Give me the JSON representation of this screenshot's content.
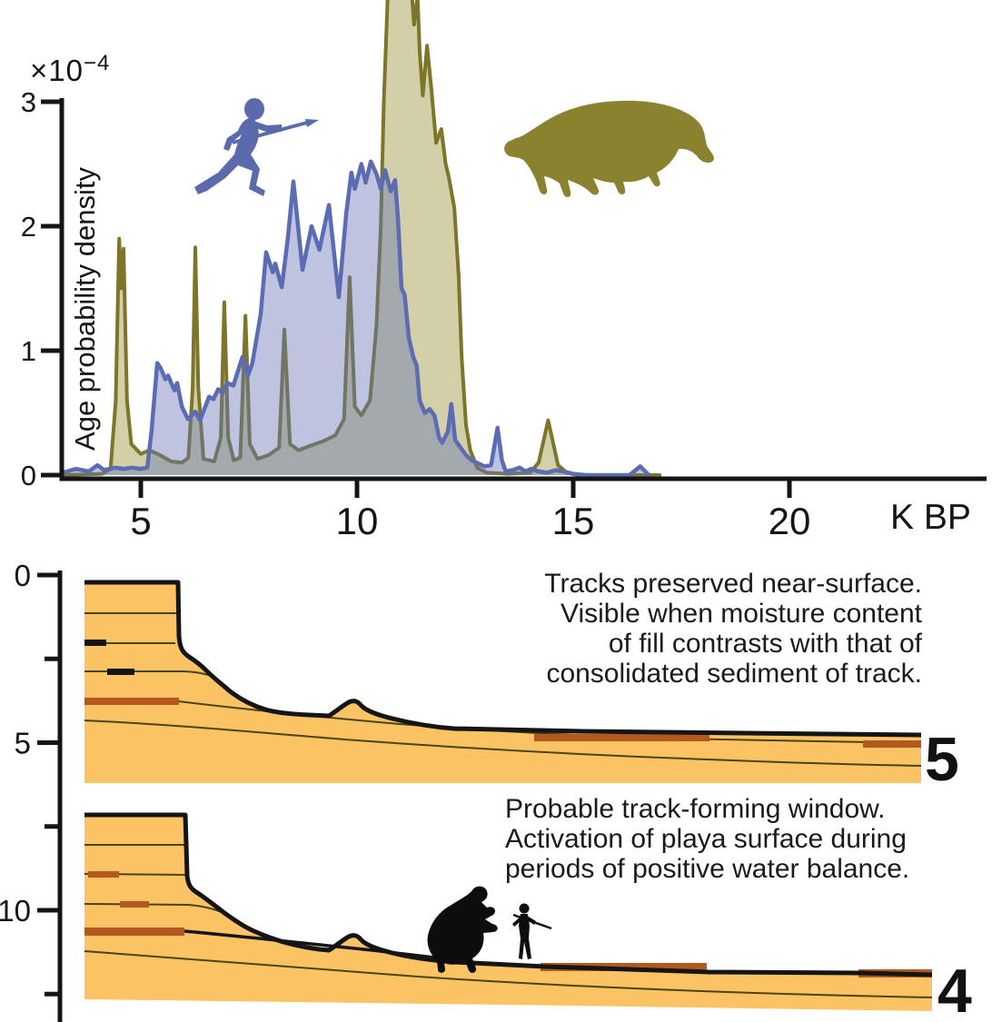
{
  "figure": {
    "colors": {
      "human_blue_stroke": "#5b6cb2",
      "human_blue_fill": "rgba(100,115,180,0.42)",
      "sloth_olive_stroke": "#7d752a",
      "sloth_olive_fill": "rgba(150,142,50,0.42)",
      "sediment_orange": "#fbc364",
      "track_brown": "#b2591f",
      "outline_black": "#151515",
      "strata_line": "#4a4414"
    },
    "sections": {
      "depth_axis": {
        "ticks": [
          {
            "value": 0,
            "label": "0"
          },
          {
            "value": 2.5,
            "label": ""
          },
          {
            "value": 5,
            "label": "5"
          },
          {
            "value": 7.5,
            "label": ""
          },
          {
            "value": 10,
            "label": "10"
          },
          {
            "value": 12.5,
            "label": ""
          }
        ]
      },
      "section5": {
        "number": "5",
        "caption_lines": [
          "Tracks preserved near-surface.",
          "Visible when moisture content",
          "of fill contrasts with that of",
          "consolidated sediment of track."
        ]
      },
      "section4": {
        "number": "4",
        "caption_lines": [
          "Probable track-forming window.",
          "Activation of playa surface during",
          "periods of positive water balance."
        ]
      }
    }
  },
  "chart_data": {
    "type": "area",
    "title": "",
    "xlabel": "K BP",
    "ylabel": "Age probability density",
    "ylabel_multiplier_base": "×10",
    "ylabel_multiplier_exponent": "−4",
    "x_unit_label": "K BP",
    "x_range": [
      3.1,
      24.5
    ],
    "y_range": [
      0,
      3
    ],
    "grid": false,
    "legend": "icons (human silhouette = blue series, ground sloth silhouette = olive series)",
    "y_ticks": [
      {
        "value": 0,
        "label": "0"
      },
      {
        "value": 1,
        "label": "1"
      },
      {
        "value": 2,
        "label": "2"
      },
      {
        "value": 3,
        "label": "3"
      }
    ],
    "x_ticks": [
      {
        "value": 5,
        "label": "5"
      },
      {
        "value": 10,
        "label": "10"
      },
      {
        "value": 15,
        "label": "15"
      },
      {
        "value": 20,
        "label": "20"
      }
    ],
    "series": [
      {
        "name": "ground-sloth",
        "stroke": "#7d752a",
        "fill": "rgba(150,142,50,0.42)",
        "stroke_width": 4,
        "points": [
          [
            3.2,
            0.0
          ],
          [
            4.1,
            0.01
          ],
          [
            4.3,
            0.05
          ],
          [
            4.42,
            0.6
          ],
          [
            4.5,
            1.9
          ],
          [
            4.55,
            1.5
          ],
          [
            4.6,
            1.82
          ],
          [
            4.68,
            0.6
          ],
          [
            4.78,
            0.25
          ],
          [
            5.0,
            0.17
          ],
          [
            5.2,
            0.2
          ],
          [
            5.45,
            0.16
          ],
          [
            5.7,
            0.11
          ],
          [
            5.95,
            0.1
          ],
          [
            6.1,
            0.14
          ],
          [
            6.2,
            0.7
          ],
          [
            6.26,
            1.83
          ],
          [
            6.33,
            0.7
          ],
          [
            6.45,
            0.13
          ],
          [
            6.7,
            0.11
          ],
          [
            6.85,
            0.3
          ],
          [
            6.93,
            1.39
          ],
          [
            7.02,
            0.3
          ],
          [
            7.15,
            0.12
          ],
          [
            7.3,
            0.14
          ],
          [
            7.42,
            1.28
          ],
          [
            7.52,
            0.25
          ],
          [
            7.7,
            0.13
          ],
          [
            7.95,
            0.16
          ],
          [
            8.2,
            0.22
          ],
          [
            8.32,
            1.17
          ],
          [
            8.45,
            0.25
          ],
          [
            8.65,
            0.2
          ],
          [
            8.95,
            0.24
          ],
          [
            9.2,
            0.27
          ],
          [
            9.5,
            0.32
          ],
          [
            9.7,
            0.45
          ],
          [
            9.83,
            1.59
          ],
          [
            9.95,
            0.55
          ],
          [
            10.1,
            0.48
          ],
          [
            10.3,
            0.6
          ],
          [
            10.45,
            1.2
          ],
          [
            10.55,
            2.0
          ],
          [
            10.62,
            3.0
          ],
          [
            10.72,
            3.95
          ],
          [
            10.8,
            4.1
          ],
          [
            11.1,
            4.15
          ],
          [
            11.25,
            3.95
          ],
          [
            11.32,
            3.62
          ],
          [
            11.4,
            3.85
          ],
          [
            11.45,
            3.4
          ],
          [
            11.52,
            3.05
          ],
          [
            11.62,
            3.45
          ],
          [
            11.72,
            3.1
          ],
          [
            11.83,
            2.67
          ],
          [
            11.95,
            2.78
          ],
          [
            12.05,
            2.5
          ],
          [
            12.12,
            2.4
          ],
          [
            12.25,
            2.15
          ],
          [
            12.35,
            1.6
          ],
          [
            12.42,
            0.95
          ],
          [
            12.52,
            0.4
          ],
          [
            12.62,
            0.2
          ],
          [
            12.78,
            0.06
          ],
          [
            13.0,
            0.02
          ],
          [
            13.5,
            0.01
          ],
          [
            14.0,
            0.02
          ],
          [
            14.2,
            0.1
          ],
          [
            14.42,
            0.44
          ],
          [
            14.65,
            0.08
          ],
          [
            14.85,
            0.02
          ],
          [
            15.1,
            0.0
          ],
          [
            17.0,
            0.0
          ]
        ]
      },
      {
        "name": "human",
        "stroke": "#5b6cb2",
        "fill": "rgba(100,115,180,0.42)",
        "stroke_width": 4.5,
        "points": [
          [
            3.2,
            0.02
          ],
          [
            3.5,
            0.05
          ],
          [
            3.8,
            0.03
          ],
          [
            4.0,
            0.08
          ],
          [
            4.15,
            0.04
          ],
          [
            4.4,
            0.06
          ],
          [
            4.6,
            0.05
          ],
          [
            4.8,
            0.06
          ],
          [
            5.0,
            0.05
          ],
          [
            5.15,
            0.06
          ],
          [
            5.25,
            0.36
          ],
          [
            5.38,
            0.9
          ],
          [
            5.46,
            0.86
          ],
          [
            5.57,
            0.77
          ],
          [
            5.63,
            0.8
          ],
          [
            5.78,
            0.68
          ],
          [
            5.84,
            0.74
          ],
          [
            5.95,
            0.55
          ],
          [
            6.09,
            0.45
          ],
          [
            6.26,
            0.51
          ],
          [
            6.37,
            0.44
          ],
          [
            6.58,
            0.63
          ],
          [
            6.68,
            0.61
          ],
          [
            6.79,
            0.69
          ],
          [
            6.89,
            0.66
          ],
          [
            7.0,
            0.74
          ],
          [
            7.14,
            0.72
          ],
          [
            7.35,
            0.95
          ],
          [
            7.48,
            0.8
          ],
          [
            7.58,
            0.9
          ],
          [
            7.77,
            1.29
          ],
          [
            7.9,
            1.79
          ],
          [
            8.05,
            1.63
          ],
          [
            8.11,
            1.7
          ],
          [
            8.26,
            1.51
          ],
          [
            8.4,
            1.9
          ],
          [
            8.53,
            2.36
          ],
          [
            8.74,
            1.65
          ],
          [
            8.95,
            2.0
          ],
          [
            9.13,
            1.81
          ],
          [
            9.35,
            2.17
          ],
          [
            9.58,
            1.43
          ],
          [
            9.75,
            2.1
          ],
          [
            9.87,
            2.43
          ],
          [
            9.95,
            2.3
          ],
          [
            10.1,
            2.5
          ],
          [
            10.2,
            2.35
          ],
          [
            10.32,
            2.52
          ],
          [
            10.45,
            2.42
          ],
          [
            10.55,
            2.3
          ],
          [
            10.65,
            2.45
          ],
          [
            10.78,
            2.28
          ],
          [
            10.88,
            2.37
          ],
          [
            10.95,
            2.05
          ],
          [
            11.03,
            1.5
          ],
          [
            11.1,
            1.45
          ],
          [
            11.2,
            1.1
          ],
          [
            11.3,
            0.95
          ],
          [
            11.38,
            0.88
          ],
          [
            11.45,
            0.6
          ],
          [
            11.57,
            0.5
          ],
          [
            11.68,
            0.53
          ],
          [
            11.79,
            0.48
          ],
          [
            11.9,
            0.3
          ],
          [
            11.97,
            0.26
          ],
          [
            12.1,
            0.35
          ],
          [
            12.18,
            0.57
          ],
          [
            12.27,
            0.28
          ],
          [
            12.4,
            0.22
          ],
          [
            12.52,
            0.16
          ],
          [
            12.65,
            0.12
          ],
          [
            12.77,
            0.1
          ],
          [
            12.95,
            0.07
          ],
          [
            13.1,
            0.08
          ],
          [
            13.25,
            0.38
          ],
          [
            13.35,
            0.12
          ],
          [
            13.44,
            0.03
          ],
          [
            13.6,
            0.04
          ],
          [
            13.76,
            0.06
          ],
          [
            13.9,
            0.03
          ],
          [
            14.03,
            0.05
          ],
          [
            14.2,
            0.03
          ],
          [
            14.39,
            0.02
          ],
          [
            14.6,
            0.04
          ],
          [
            14.77,
            0.03
          ],
          [
            15.0,
            0.01
          ],
          [
            15.3,
            0.0
          ],
          [
            16.3,
            0.0
          ],
          [
            16.55,
            0.07
          ],
          [
            16.75,
            0.0
          ]
        ]
      }
    ]
  }
}
